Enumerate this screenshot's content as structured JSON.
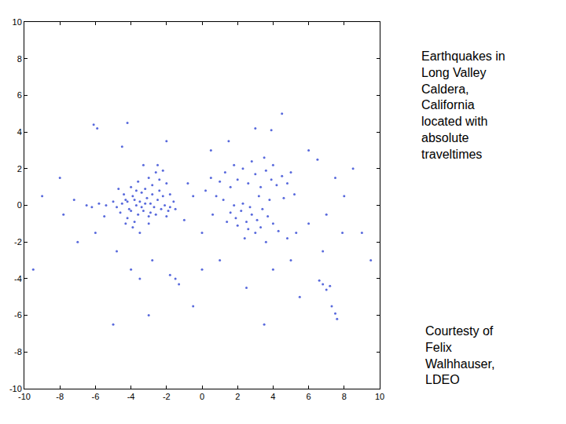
{
  "chart_data": {
    "type": "scatter",
    "color": "#3b4fd6",
    "marker": "point",
    "grid": false,
    "xlim": [
      -10,
      10
    ],
    "xticks": [
      -10,
      -8,
      -6,
      -4,
      -2,
      0,
      2,
      4,
      6,
      8,
      10
    ],
    "ylim": [
      -10,
      10
    ],
    "yticks": [
      -10,
      -8,
      -6,
      -4,
      -2,
      0,
      2,
      4,
      6,
      8,
      10
    ],
    "annotations": [
      "Earthquakes in\nLong Valley\nCaldera,\nCalifornia\nlocated with\nabsolute\ntraveltimes",
      "Courtesty of\nFelix\nWalhhauser,\nLDEO"
    ],
    "x": [
      -4.5,
      -4.3,
      -4.1,
      -3.9,
      -3.7,
      -3.5,
      -3.3,
      -3.1,
      -2.9,
      -2.7,
      -2.5,
      -2.3,
      -2.1,
      -1.9,
      -4.6,
      -4.2,
      -3.8,
      -3.6,
      -3.4,
      -3.2,
      -3.0,
      -2.8,
      -2.6,
      -2.4,
      -4.0,
      -3.9,
      -4.4,
      -4.8,
      -5.0,
      -3.6,
      -3.0,
      -2.6,
      -2.2,
      -2.0,
      -2.4,
      -2.8,
      -1.8,
      -1.6,
      -1.5,
      -3.5,
      -3.0,
      -4.3,
      -4.0,
      -3.7,
      -3.2,
      -2.9,
      -3.4,
      -4.2,
      -3.8,
      -2.2,
      -2.0,
      -1.8,
      -5.4,
      -5.8,
      -6.2,
      -6.5,
      -7.2,
      -5.5,
      -3.3,
      -2.5,
      -4.7,
      0.5,
      1.0,
      1.3,
      1.6,
      2.0,
      2.3,
      2.6,
      3.0,
      3.3,
      3.6,
      3.9,
      4.2,
      4.5,
      4.8,
      5.0,
      2.8,
      3.5,
      1.8,
      4.0,
      0.2,
      0.8,
      1.2,
      4.6,
      5.2,
      3.2,
      3.8,
      1.6,
      1.9,
      2.2,
      2.5,
      2.8,
      3.1,
      3.4,
      2.0,
      2.6,
      3.0,
      1.4,
      3.7,
      4.0,
      2.3,
      1.8,
      2.7,
      3.3,
      4.3,
      4.8,
      5.3,
      3.6,
      2.4,
      0.6,
      -0.5,
      -1.0,
      0.0,
      -0.8,
      -6.1,
      -5.9,
      -4.5,
      -4.8,
      -4.0,
      -3.5,
      -1.5,
      -1.3,
      -1.8,
      -2.8,
      -7.8,
      -8.0,
      -7.0,
      -6.0,
      -4.2,
      -2.0,
      0.5,
      1.5,
      3.0,
      3.9,
      4.5,
      6.0,
      6.5,
      7.5,
      8.0,
      7.0,
      6.0,
      6.8,
      7.9,
      6.8,
      7.0,
      7.2,
      6.6,
      7.5,
      7.6,
      7.3,
      5.0,
      4.0,
      2.5,
      3.5,
      1.0,
      0.0,
      -0.5,
      9.0,
      9.5,
      -9.5,
      -9.0,
      -3.0,
      -5.0,
      5.5,
      8.5
    ],
    "values": [
      0.1,
      0.3,
      -0.2,
      0.5,
      0.0,
      0.2,
      -0.3,
      0.4,
      0.1,
      -0.1,
      0.3,
      -0.2,
      0.0,
      -0.3,
      -0.4,
      -0.7,
      -0.9,
      -0.5,
      0.7,
      0.9,
      -0.6,
      0.6,
      -0.5,
      0.8,
      1.0,
      -1.2,
      0.6,
      -0.1,
      0.2,
      1.3,
      1.5,
      1.8,
      1.9,
      1.2,
      1.4,
      1.1,
      0.6,
      0.2,
      -0.2,
      -1.5,
      -1.0,
      -1.0,
      -0.3,
      0.8,
      0.1,
      -0.4,
      -0.1,
      0.2,
      0.3,
      0.5,
      -0.6,
      -0.1,
      0.0,
      0.1,
      -0.1,
      0.0,
      0.3,
      -0.6,
      2.2,
      2.2,
      0.9,
      1.5,
      1.3,
      1.8,
      1.0,
      1.4,
      2.0,
      1.2,
      1.7,
      1.0,
      1.9,
      1.4,
      1.1,
      1.6,
      1.2,
      1.8,
      2.4,
      2.6,
      2.2,
      2.2,
      0.8,
      0.5,
      0.3,
      0.4,
      0.6,
      0.5,
      0.3,
      -0.4,
      -0.7,
      -0.3,
      -0.9,
      -0.5,
      -0.8,
      -0.2,
      -1.1,
      -1.3,
      -1.5,
      -0.9,
      -0.6,
      -1.0,
      0.1,
      0.0,
      -0.1,
      -1.2,
      -1.4,
      -1.8,
      -1.5,
      -2.0,
      -1.8,
      -0.5,
      0.5,
      -0.8,
      -1.5,
      1.2,
      4.4,
      4.2,
      3.2,
      -2.5,
      -3.5,
      -4.0,
      -4.0,
      -4.3,
      -3.8,
      -3.0,
      -0.5,
      1.5,
      -2.0,
      -1.5,
      4.5,
      3.5,
      3.0,
      3.5,
      4.2,
      4.1,
      5.0,
      3.0,
      2.5,
      1.5,
      0.5,
      -0.5,
      -1.0,
      -2.5,
      -1.5,
      -4.3,
      -4.6,
      -4.4,
      -4.1,
      -5.9,
      -6.2,
      -5.5,
      -3.0,
      -3.5,
      -4.5,
      -6.5,
      -3.0,
      -3.5,
      -5.5,
      -1.5,
      -3.0,
      -3.5,
      0.5,
      -6.0,
      -6.5,
      -5.0,
      2.0
    ]
  }
}
